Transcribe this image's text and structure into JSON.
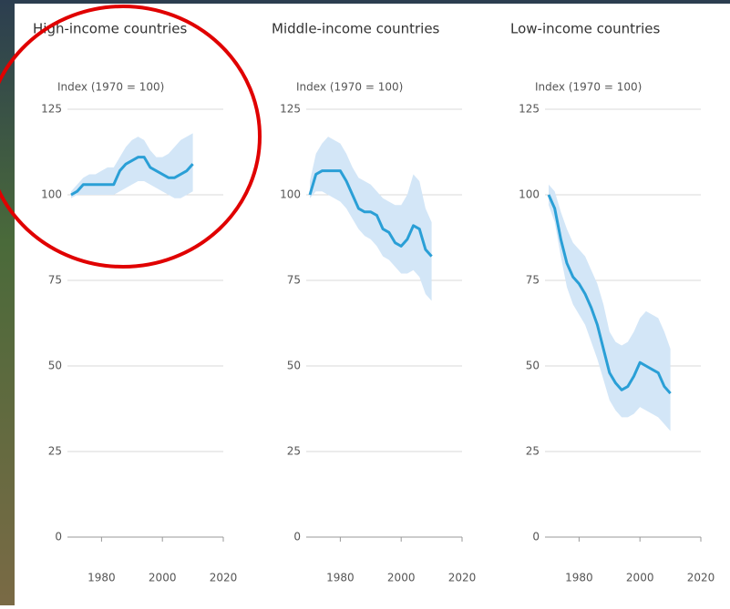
{
  "chart_data": [
    {
      "type": "line",
      "title": "High-income countries",
      "y_label": "Index (1970 = 100)",
      "x": [
        1970,
        1972,
        1974,
        1976,
        1978,
        1980,
        1982,
        1984,
        1986,
        1988,
        1990,
        1992,
        1994,
        1996,
        1998,
        2000,
        2002,
        2004,
        2006,
        2008,
        2010
      ],
      "series": [
        {
          "color": "#2a9fd6",
          "band_color": "#d3e6f7",
          "values": [
            100,
            101,
            103,
            103,
            103,
            103,
            103,
            103,
            107,
            109,
            110,
            111,
            111,
            108,
            107,
            106,
            105,
            105,
            106,
            107,
            109
          ],
          "lower": [
            99,
            100,
            100,
            100,
            100,
            100,
            100,
            100,
            101,
            102,
            103,
            104,
            104,
            103,
            102,
            101,
            100,
            99,
            99,
            100,
            101
          ],
          "upper": [
            101,
            103,
            105,
            106,
            106,
            107,
            108,
            108,
            111,
            114,
            116,
            117,
            116,
            113,
            111,
            111,
            112,
            114,
            116,
            117,
            118
          ]
        }
      ],
      "xlim": [
        1970,
        2020
      ],
      "xticks": [
        1980,
        2000,
        2020
      ],
      "ylim": [
        0,
        125
      ],
      "yticks": [
        0,
        25,
        50,
        75,
        100,
        125
      ],
      "grid": true
    },
    {
      "type": "line",
      "title": "Middle-income countries",
      "y_label": "Index (1970 = 100)",
      "x": [
        1970,
        1972,
        1974,
        1976,
        1978,
        1980,
        1982,
        1984,
        1986,
        1988,
        1990,
        1992,
        1994,
        1996,
        1998,
        2000,
        2002,
        2004,
        2006,
        2008,
        2010
      ],
      "series": [
        {
          "color": "#2a9fd6",
          "band_color": "#d3e6f7",
          "values": [
            100,
            106,
            107,
            107,
            107,
            107,
            104,
            100,
            96,
            95,
            95,
            94,
            90,
            89,
            86,
            85,
            87,
            91,
            90,
            84,
            82
          ],
          "lower": [
            99,
            101,
            101,
            100,
            99,
            98,
            96,
            93,
            90,
            88,
            87,
            85,
            82,
            81,
            79,
            77,
            77,
            78,
            76,
            71,
            69
          ],
          "upper": [
            104,
            112,
            115,
            117,
            116,
            115,
            112,
            108,
            105,
            104,
            103,
            101,
            99,
            98,
            97,
            97,
            100,
            106,
            104,
            96,
            92
          ]
        }
      ],
      "xlim": [
        1970,
        2020
      ],
      "xticks": [
        1980,
        2000,
        2020
      ],
      "ylim": [
        0,
        125
      ],
      "yticks": [
        0,
        25,
        50,
        75,
        100,
        125
      ],
      "grid": true
    },
    {
      "type": "line",
      "title": "Low-income countries",
      "y_label": "Index (1970 = 100)",
      "x": [
        1970,
        1972,
        1974,
        1976,
        1978,
        1980,
        1982,
        1984,
        1986,
        1988,
        1990,
        1992,
        1994,
        1996,
        1998,
        2000,
        2002,
        2004,
        2006,
        2008,
        2010
      ],
      "series": [
        {
          "color": "#2a9fd6",
          "band_color": "#d3e6f7",
          "values": [
            100,
            96,
            87,
            80,
            76,
            74,
            71,
            67,
            62,
            55,
            48,
            45,
            43,
            44,
            47,
            51,
            50,
            49,
            48,
            44,
            42
          ],
          "lower": [
            97,
            92,
            82,
            73,
            68,
            65,
            62,
            57,
            52,
            46,
            40,
            37,
            35,
            35,
            36,
            38,
            37,
            36,
            35,
            33,
            31
          ],
          "upper": [
            103,
            101,
            95,
            90,
            86,
            84,
            82,
            78,
            74,
            68,
            60,
            57,
            56,
            57,
            60,
            64,
            66,
            65,
            64,
            60,
            55
          ]
        }
      ],
      "xlim": [
        1970,
        2020
      ],
      "xticks": [
        1980,
        2000,
        2020
      ],
      "ylim": [
        0,
        125
      ],
      "yticks": [
        0,
        25,
        50,
        75,
        100,
        125
      ],
      "grid": true
    }
  ]
}
